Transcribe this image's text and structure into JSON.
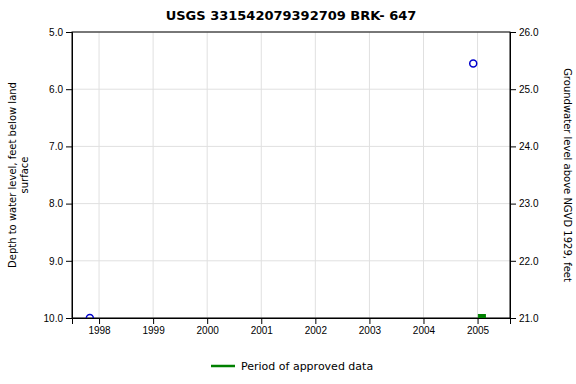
{
  "chart_data": {
    "type": "scatter",
    "title": "USGS 331542079392709 BRK- 647",
    "ylabel": "Depth to water level, feet below land\n surface",
    "y2label": "Groundwater level above NGVD 1929, feet",
    "xlim": [
      1997.5,
      2005.6
    ],
    "xticks": [
      1998,
      1999,
      2000,
      2001,
      2002,
      2003,
      2004,
      2005
    ],
    "ylim": [
      10.0,
      5.0
    ],
    "yticks": [
      {
        "value": 5.0,
        "label": "5.0"
      },
      {
        "value": 6.0,
        "label": "6.0"
      },
      {
        "value": 7.0,
        "label": "7.0"
      },
      {
        "value": 8.0,
        "label": "8.0"
      },
      {
        "value": 9.0,
        "label": "9.0"
      },
      {
        "value": 10.0,
        "label": "10.0"
      }
    ],
    "y2lim": [
      21.0,
      26.0
    ],
    "y2ticks": [
      {
        "value": 21.0,
        "label": "21.0"
      },
      {
        "value": 22.0,
        "label": "22.0"
      },
      {
        "value": 23.0,
        "label": "23.0"
      },
      {
        "value": 24.0,
        "label": "24.0"
      },
      {
        "value": 25.0,
        "label": "25.0"
      },
      {
        "value": 26.0,
        "label": "26.0"
      }
    ],
    "grid": true,
    "legend": "bottom",
    "series": [
      {
        "color": "#0000cc",
        "marker": "circle",
        "x": [
          1997.83,
          2004.92
        ],
        "values": [
          10.0,
          5.55
        ]
      },
      {
        "name": "Period of approved data",
        "color": "#008000",
        "marker": "square",
        "x": [
          2005.08
        ],
        "values": [
          10.0
        ]
      }
    ]
  }
}
